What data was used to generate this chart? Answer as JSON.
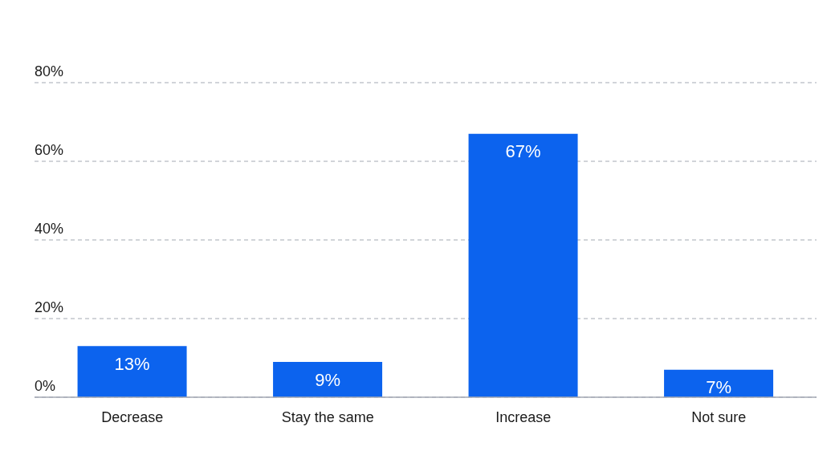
{
  "chart_data": {
    "type": "bar",
    "categories": [
      "Decrease",
      "Stay the same",
      "Increase",
      "Not sure"
    ],
    "values": [
      13,
      9,
      67,
      7
    ],
    "color": "#0c63ee",
    "ylim": [
      0,
      80
    ],
    "yticks": [
      {
        "value": 0,
        "label": "0%"
      },
      {
        "value": 20,
        "label": "20%"
      },
      {
        "value": 40,
        "label": "40%"
      },
      {
        "value": 60,
        "label": "60%"
      },
      {
        "value": 80,
        "label": "80%"
      }
    ],
    "grid": "y",
    "value_labels": [
      "13%",
      "9%",
      "67%",
      "7%"
    ]
  }
}
